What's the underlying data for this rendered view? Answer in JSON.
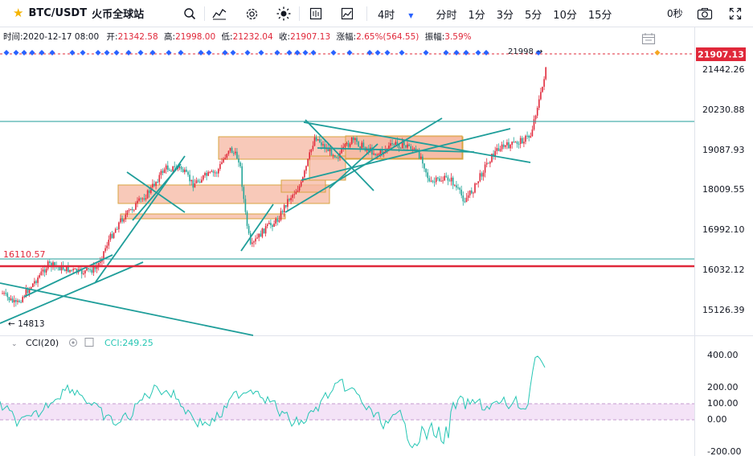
{
  "toolbar": {
    "symbol": "BTC/USDT",
    "exchange": "火币全球站",
    "intervals": [
      {
        "label": "4时",
        "active": true
      },
      {
        "label": "分时",
        "active": false
      },
      {
        "label": "1分",
        "active": false
      },
      {
        "label": "3分",
        "active": false
      },
      {
        "label": "5分",
        "active": false
      },
      {
        "label": "10分",
        "active": false
      },
      {
        "label": "15分",
        "active": false
      }
    ],
    "countdown": "0秒",
    "icons": [
      "star-icon",
      "search-icon",
      "indicators-icon",
      "settings-icon",
      "theme-icon",
      "fullscreen-icon",
      "screenshot-icon",
      "expand-icon"
    ]
  },
  "legend": {
    "time_label": "时间:",
    "time_value": "2020-12-17 08:00",
    "open_label": "开:",
    "open_value": "21342.58",
    "high_label": "高:",
    "high_value": "21998.00",
    "low_label": "低:",
    "low_value": "21232.04",
    "close_label": "收:",
    "close_value": "21907.13",
    "change_label": "涨幅:",
    "change_value": "2.65%(564.55)",
    "amp_label": "振幅:",
    "amp_value": "3.59%"
  },
  "price_axis": {
    "ticks": [
      "21442.26",
      "20230.88",
      "19087.93",
      "18009.55",
      "16992.10",
      "16032.12",
      "15126.39"
    ],
    "last_price": "21907.13",
    "last_price_color": "#e0283a"
  },
  "annotations": {
    "low_marker": "← 14813",
    "high_marker": "21998 →",
    "level_label": "16110.57"
  },
  "cci": {
    "title": "CCI(20)",
    "value_label": "CCI:249.25",
    "ticks": [
      "400.00",
      "200.00",
      "100.00",
      "0.00",
      "-200.00"
    ],
    "line_color": "#26c6b4"
  },
  "colors": {
    "up": "#e0283a",
    "down": "#26a69a",
    "trendline": "#1f9e9a",
    "box_fill": "#f5b7a1",
    "box_border": "#d9a441",
    "accent": "#2962ff"
  },
  "chart_data": {
    "type": "candlestick",
    "y_range": [
      14813,
      21998
    ],
    "last": 21907.13,
    "high": 21998.0,
    "low": 14813,
    "horizontal_levels": [
      20230.88,
      16110.57,
      16032.12
    ],
    "cci_range": [
      -200,
      400
    ],
    "cci_last": 249.25
  }
}
